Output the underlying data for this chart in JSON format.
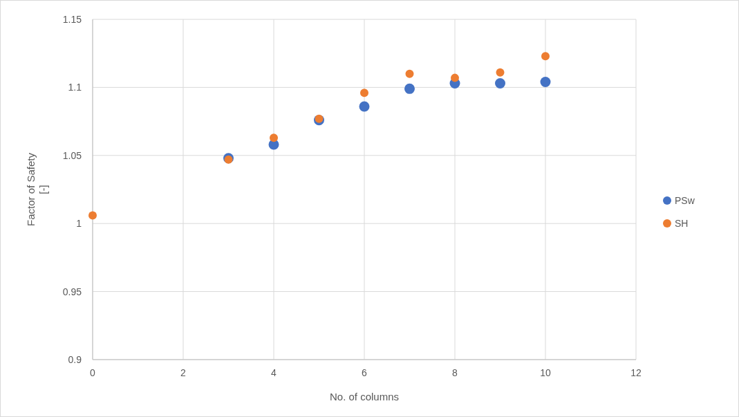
{
  "chart_data": {
    "type": "scatter",
    "xlabel": "No. of columns",
    "ylabel": "Factor of Safety\n[-]",
    "xlim": [
      0,
      12
    ],
    "xticks": [
      0,
      2,
      4,
      6,
      8,
      10,
      12
    ],
    "ylim": [
      0.9,
      1.15
    ],
    "yticks": [
      0.9,
      0.95,
      1,
      1.05,
      1.1,
      1.15
    ],
    "grid": true,
    "legend": "right",
    "marker": "circle",
    "series": [
      {
        "name": "PSw",
        "color": "#4472c4",
        "x": [
          3,
          4,
          5,
          6,
          7,
          8,
          9,
          10
        ],
        "values": [
          1.048,
          1.058,
          1.076,
          1.086,
          1.099,
          1.103,
          1.103,
          1.104
        ]
      },
      {
        "name": "SH",
        "color": "#ed7d31",
        "x": [
          0,
          3,
          4,
          5,
          6,
          7,
          8,
          9,
          10
        ],
        "values": [
          1.006,
          1.047,
          1.063,
          1.077,
          1.096,
          1.11,
          1.107,
          1.111,
          1.123
        ]
      }
    ]
  }
}
